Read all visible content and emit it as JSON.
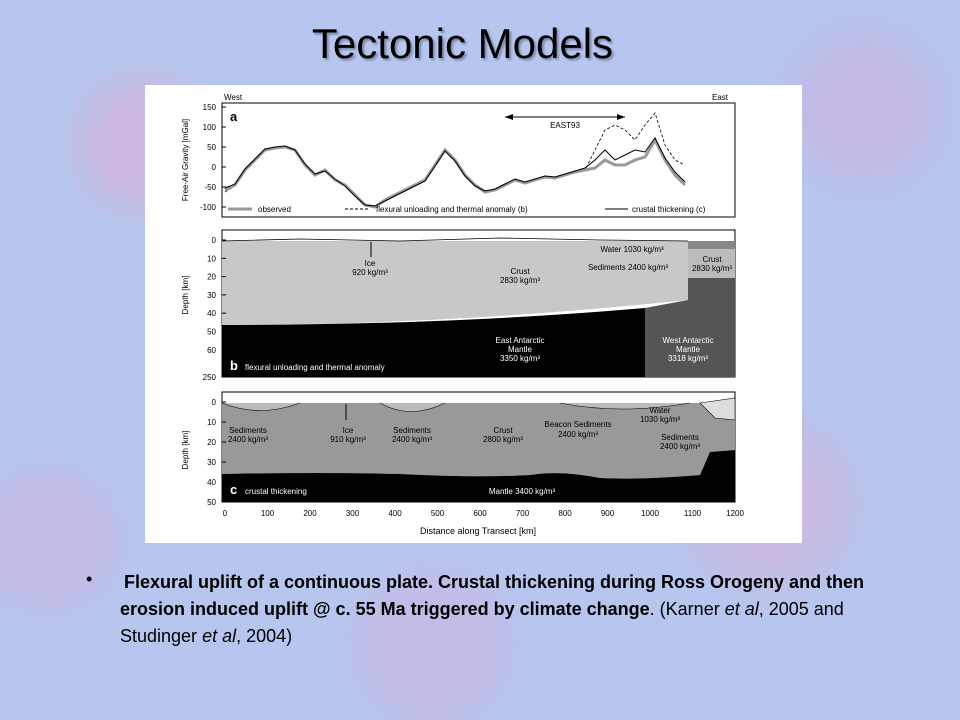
{
  "title": "Tectonic Models",
  "figure": {
    "panel_a": {
      "label": "a",
      "west": "West",
      "east": "East",
      "ylabel": "Free-Air Gravity [mGal]",
      "yticks": [
        150,
        100,
        50,
        0,
        -50,
        -100
      ],
      "annotation": "EAST93",
      "legend": [
        "observed",
        "flexural unloading and thermal anomaly (b)",
        "crustal thickening (c)"
      ]
    },
    "panel_b": {
      "label": "b",
      "caption": "flexural unloading and thermal anomaly",
      "ylabel": "Depth [km]",
      "yticks": [
        0,
        10,
        20,
        30,
        40,
        50,
        60
      ],
      "bottom_tick": 250,
      "labels": [
        [
          "Ice",
          "920 kg/m³"
        ],
        [
          "Crust",
          "2830 kg/m³"
        ],
        [
          "Water 1030 kg/m³"
        ],
        [
          "Sediments 2400 kg/m³"
        ],
        [
          "Crust",
          "2830 kg/m³"
        ],
        [
          "East Antarctic",
          "Mantle",
          "3350 kg/m³"
        ],
        [
          "West Antarctic",
          "Mantle",
          "3318 kg/m³"
        ]
      ]
    },
    "panel_c": {
      "label": "c",
      "caption": "crustal thickening",
      "ylabel": "Depth [km]",
      "yticks": [
        0,
        10,
        20,
        30,
        40,
        50
      ],
      "labels": [
        [
          "Sediments",
          "2400 kg/m³"
        ],
        [
          "Ice",
          "910 kg/m³"
        ],
        [
          "Sediments",
          "2400 kg/m³"
        ],
        [
          "Crust",
          "2800 kg/m³"
        ],
        [
          "Beacon Sediments",
          "2400 kg/m³"
        ],
        [
          "Water",
          "1030 kg/m³"
        ],
        [
          "Sediments",
          "2400 kg/m³"
        ],
        [
          "Mantle 3400 kg/m³"
        ]
      ]
    },
    "xlabel": "Distance along Transect [km]",
    "xticks": [
      0,
      100,
      200,
      300,
      400,
      500,
      600,
      700,
      800,
      900,
      1000,
      1100,
      1200
    ]
  },
  "bullet": [
    {
      "text": "Flexural uplift of a continuous plate. Crustal thickening during Ross Orogeny and then erosion induced uplift @ c. 55 Ma triggered by climate change",
      "style": "bold"
    },
    {
      "text": ". (Karner ",
      "style": "normal"
    },
    {
      "text": "et al",
      "style": "italic"
    },
    {
      "text": ", 2005 and Studinger ",
      "style": "normal"
    },
    {
      "text": "et al",
      "style": "italic"
    },
    {
      "text": ", 2004)",
      "style": "normal"
    }
  ]
}
